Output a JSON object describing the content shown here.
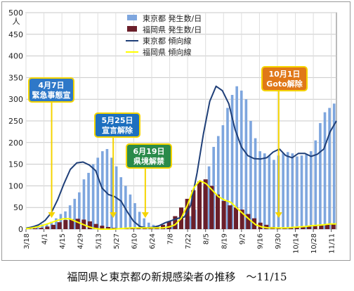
{
  "caption": "福岡県と東京都の新規感染者の推移　～11/15",
  "chart_data": {
    "type": "bar",
    "y_unit": "人",
    "ylim": [
      0,
      500
    ],
    "yticks": [
      0,
      50,
      100,
      150,
      200,
      250,
      300,
      350,
      400,
      450,
      500
    ],
    "xticks": [
      "3/18",
      "4/1",
      "4/15",
      "4/29",
      "5/13",
      "5/27",
      "6/10",
      "6/24",
      "7/8",
      "7/22",
      "8/5",
      "8/19",
      "9/2",
      "9/16",
      "9/30",
      "10/14",
      "10/28",
      "11/11"
    ],
    "x_range": [
      "3/18",
      "11/15"
    ],
    "grid": true,
    "legend_position": "top-center",
    "colors": {
      "tokyo_bar": "#7ea6de",
      "fukuoka_bar": "#6b1f2a",
      "tokyo_trend": "#1f3f78",
      "fukuoka_trend": "#ffff00"
    },
    "series": [
      {
        "name": "東京都 発生数/日",
        "kind": "bar",
        "values": [
          5,
          7,
          9,
          11,
          13,
          17,
          25,
          35,
          41,
          55,
          70,
          85,
          115,
          130,
          150,
          165,
          180,
          185,
          165,
          145,
          120,
          100,
          80,
          60,
          40,
          25,
          15,
          10,
          8,
          6,
          8,
          10,
          13,
          16,
          22,
          30,
          45,
          65,
          100,
          145,
          190,
          215,
          240,
          280,
          310,
          330,
          320,
          300,
          250,
          210,
          180,
          175,
          170,
          160,
          170,
          175,
          178,
          175,
          168,
          170,
          172,
          180,
          205,
          245,
          270,
          280,
          290
        ]
      },
      {
        "name": "福岡県 発生数/日",
        "kind": "bar",
        "values": [
          1,
          2,
          3,
          6,
          10,
          16,
          21,
          23,
          24,
          22,
          18,
          12,
          8,
          5,
          3,
          2,
          2,
          3,
          3,
          3,
          3,
          5,
          10,
          18,
          30,
          50,
          70,
          90,
          110,
          115,
          100,
          80,
          65,
          55,
          50,
          45,
          35,
          25,
          15,
          10,
          5,
          4,
          3,
          3,
          4,
          5,
          6,
          8,
          10,
          12,
          12
        ]
      },
      {
        "name": "東京都 傾向線",
        "kind": "line",
        "values": [
          2,
          5,
          10,
          20,
          38,
          68,
          105,
          138,
          153,
          155,
          148,
          135,
          95,
          80,
          75,
          65,
          40,
          18,
          6,
          3,
          4,
          8,
          15,
          20,
          25,
          28,
          55,
          130,
          220,
          295,
          330,
          320,
          290,
          230,
          190,
          170,
          163,
          162,
          165,
          178,
          185,
          170,
          165,
          175,
          175,
          168,
          173,
          185,
          225,
          250
        ]
      },
      {
        "name": "福岡県 傾向線",
        "kind": "line",
        "values": [
          1,
          3,
          6,
          10,
          15,
          20,
          24,
          24,
          18,
          12,
          6,
          2,
          0,
          0,
          0,
          1,
          2,
          3,
          3,
          3,
          3,
          3,
          3,
          5,
          10,
          25,
          55,
          95,
          112,
          105,
          90,
          75,
          67,
          62,
          48,
          35,
          22,
          10,
          5,
          3,
          3,
          3,
          3,
          4,
          5,
          6,
          8,
          9,
          10,
          12,
          12
        ]
      }
    ],
    "annotations": [
      {
        "label": "4月7日\n緊急事態宣",
        "date": "4/7",
        "bg": "#2e78c8"
      },
      {
        "label": "5月25日\n宣言解除",
        "date": "5/25",
        "bg": "#1d6fbf"
      },
      {
        "label": "6月19日\n県境解禁",
        "date": "6/19",
        "bg": "#2a8a4a"
      },
      {
        "label": "10月1日\nGoto解除",
        "date": "10/1",
        "bg": "#e07818"
      }
    ]
  }
}
